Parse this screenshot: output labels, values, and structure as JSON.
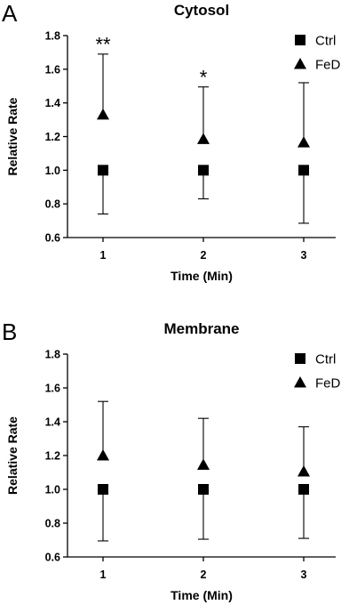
{
  "chart_data": [
    {
      "panel": "A",
      "type": "scatter",
      "title": "Cytosol",
      "xlabel": "Time (Min)",
      "ylabel": "Relative Rate",
      "x": [
        1,
        2,
        3
      ],
      "xticks": [
        "1",
        "2",
        "3"
      ],
      "yticks": [
        "0.6",
        "0.8",
        "1.0",
        "1.2",
        "1.4",
        "1.6",
        "1.8"
      ],
      "ylim": [
        0.6,
        1.8
      ],
      "legend_position": "top-right",
      "grid": false,
      "series": [
        {
          "name": "Ctrl",
          "marker": "square",
          "values": [
            1.0,
            1.0,
            1.0
          ],
          "error_low": [
            0.74,
            0.83,
            0.685
          ],
          "error_high": null
        },
        {
          "name": "FeD",
          "marker": "triangle",
          "values": [
            1.33,
            1.185,
            1.165
          ],
          "error_low": null,
          "error_high": [
            1.69,
            1.495,
            1.52
          ]
        }
      ],
      "annotations": [
        {
          "x": 1,
          "y": 1.75,
          "text": "**"
        },
        {
          "x": 2,
          "y": 1.555,
          "text": "*"
        }
      ]
    },
    {
      "panel": "B",
      "type": "scatter",
      "title": "Membrane",
      "xlabel": "Time (Min)",
      "ylabel": "Relative Rate",
      "x": [
        1,
        2,
        3
      ],
      "xticks": [
        "1",
        "2",
        "3"
      ],
      "yticks": [
        "0.6",
        "0.8",
        "1.0",
        "1.2",
        "1.4",
        "1.6",
        "1.8"
      ],
      "ylim": [
        0.6,
        1.8
      ],
      "legend_position": "top-right",
      "grid": false,
      "series": [
        {
          "name": "Ctrl",
          "marker": "square",
          "values": [
            1.0,
            1.0,
            1.0
          ],
          "error_low": [
            0.695,
            0.705,
            0.71
          ],
          "error_high": null
        },
        {
          "name": "FeD",
          "marker": "triangle",
          "values": [
            1.2,
            1.145,
            1.105
          ],
          "error_low": null,
          "error_high": [
            1.52,
            1.42,
            1.37
          ]
        }
      ],
      "annotations": []
    }
  ]
}
